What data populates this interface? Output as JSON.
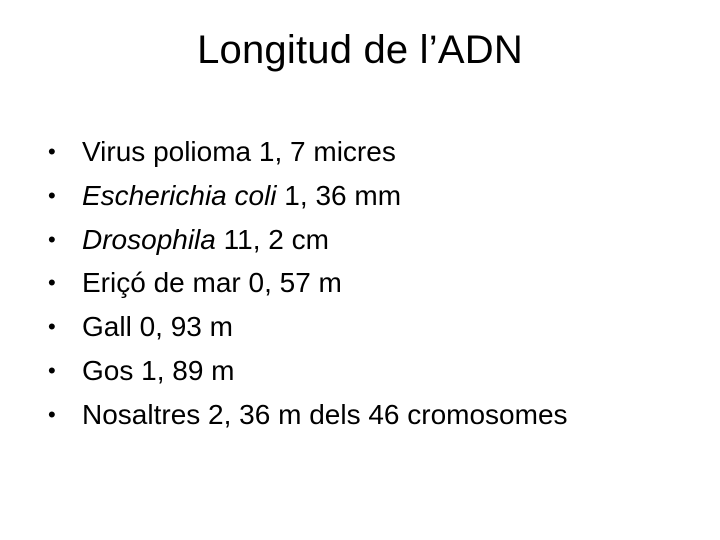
{
  "slide": {
    "title": "Longitud de l’ADN",
    "title_fontsize": 40,
    "body_fontsize": 28,
    "background_color": "#ffffff",
    "text_color": "#000000",
    "bullet_char": "•",
    "items": [
      {
        "prefix": "",
        "italic": "",
        "rest": "Virus polioma 1, 7 micres"
      },
      {
        "prefix": "",
        "italic": "Escherichia coli",
        "rest": " 1, 36 mm"
      },
      {
        "prefix": "",
        "italic": "Drosophila",
        "rest": " 11, 2 cm"
      },
      {
        "prefix": "",
        "italic": "",
        "rest": "Eriçó de mar 0, 57 m"
      },
      {
        "prefix": "",
        "italic": "",
        "rest": "Gall 0, 93 m"
      },
      {
        "prefix": "",
        "italic": "",
        "rest": "Gos 1, 89 m"
      },
      {
        "prefix": "",
        "italic": "",
        "rest": "Nosaltres 2, 36 m dels 46 cromosomes"
      }
    ]
  }
}
